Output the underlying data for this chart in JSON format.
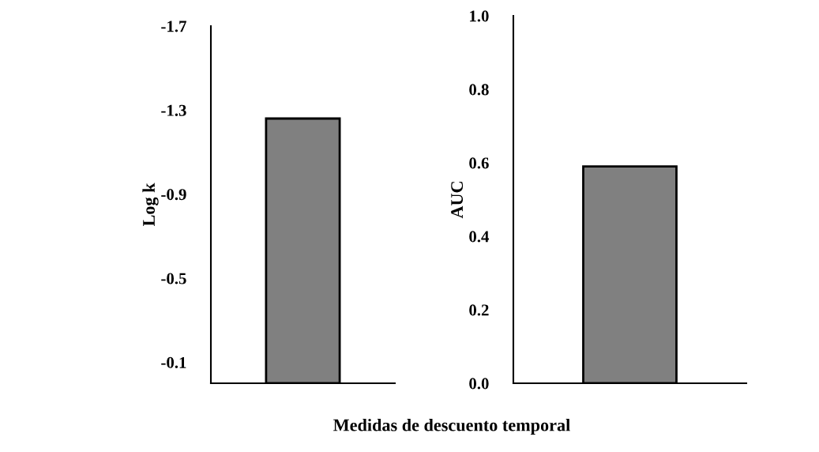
{
  "chart_data": [
    {
      "type": "bar",
      "ylabel": "Log k",
      "xlabel": "Medidas de descuento temporal",
      "categories": [
        null
      ],
      "values": [
        -1.26
      ],
      "color": "#808080",
      "ylim": [
        0.0,
        -1.7
      ],
      "yticks": [
        -0.1,
        -0.5,
        -0.9,
        -1.3,
        -1.7
      ],
      "grid": false,
      "legend": false
    },
    {
      "type": "bar",
      "ylabel": "AUC",
      "categories": [
        null
      ],
      "values": [
        0.59
      ],
      "color": "#808080",
      "ylim": [
        0.0,
        1.0
      ],
      "yticks": [
        {
          "value": 0,
          "label": "0.0"
        },
        0.2,
        0.4,
        0.6,
        0.8,
        {
          "value": 1,
          "label": "1.0"
        }
      ],
      "grid": false,
      "legend": false
    }
  ]
}
